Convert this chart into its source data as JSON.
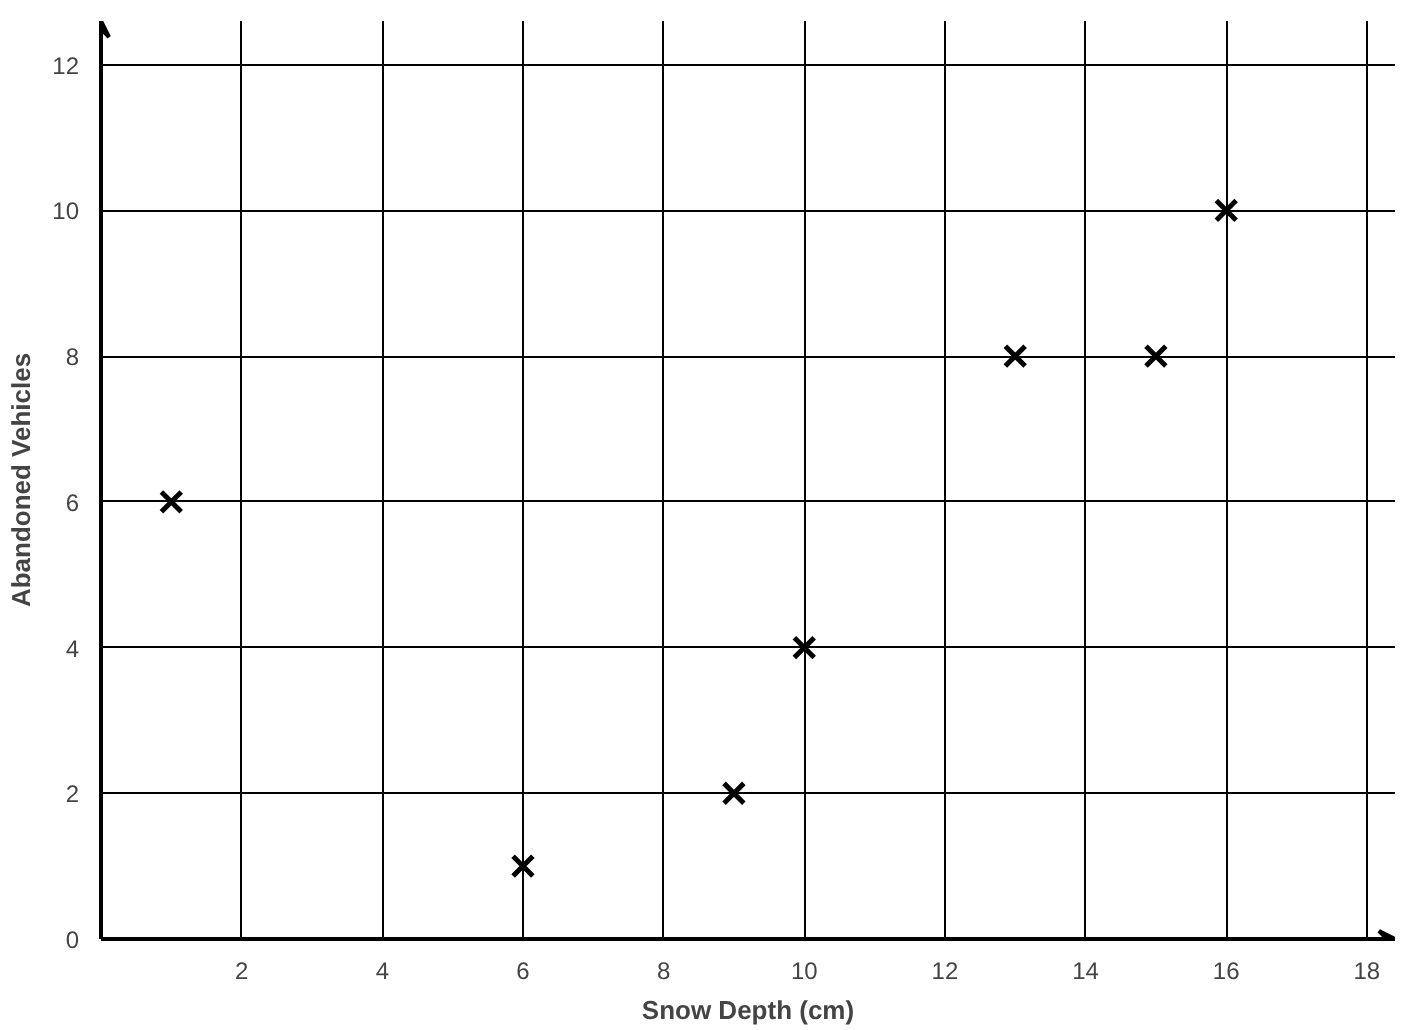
{
  "chart_data": {
    "type": "scatter",
    "xlabel": "Snow Depth (cm)",
    "ylabel": "Abandoned Vehicles",
    "x": [
      1,
      6,
      9,
      10,
      13,
      15,
      16
    ],
    "values": [
      6,
      1,
      2,
      4,
      8,
      8,
      10
    ],
    "color": "#000000",
    "marker": "cross",
    "xlim": [
      0,
      18.4
    ],
    "ylim": [
      0,
      12.6
    ],
    "xticks": [
      2,
      4,
      6,
      8,
      10,
      12,
      14,
      16,
      18
    ],
    "yticks": [
      0,
      2,
      4,
      6,
      8,
      10,
      12
    ],
    "grid": true
  }
}
